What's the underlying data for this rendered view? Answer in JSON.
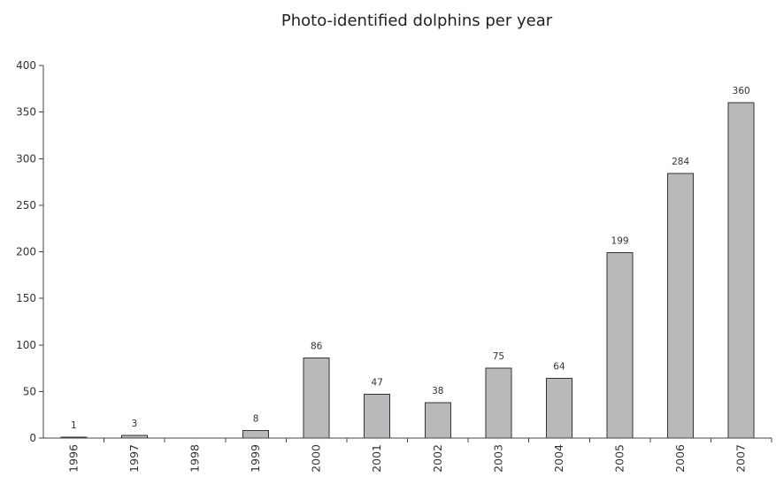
{
  "chart_data": {
    "type": "bar",
    "title": "Photo-identified dolphins per year",
    "xlabel": "",
    "ylabel": "",
    "categories": [
      "1996",
      "1997",
      "1998",
      "1999",
      "2000",
      "2001",
      "2002",
      "2003",
      "2004",
      "2005",
      "2006",
      "2007"
    ],
    "values": [
      1,
      3,
      0,
      8,
      86,
      47,
      38,
      75,
      64,
      199,
      284,
      360
    ],
    "data_labels": [
      "1",
      "3",
      "",
      "8",
      "86",
      "47",
      "38",
      "75",
      "64",
      "199",
      "284",
      "360"
    ],
    "ylim": [
      0,
      400
    ],
    "yticks": [
      0,
      50,
      100,
      150,
      200,
      250,
      300,
      350,
      400
    ],
    "grid": false,
    "legend": "none",
    "bar_color": "#b9b9bc",
    "bar_edge_color": "#333333"
  }
}
